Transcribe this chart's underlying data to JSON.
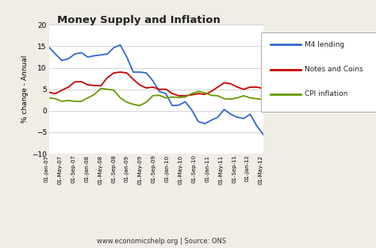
{
  "title": "Money Supply and Inflation",
  "ylabel": "% change - Annual",
  "source_text": "www.economicshelp.org | Source: ONS",
  "ylim": [
    -10,
    20
  ],
  "yticks": [
    -10,
    -5,
    0,
    5,
    10,
    15,
    20
  ],
  "background_color": "#f0ede6",
  "plot_bg_color": "#ffffff",
  "legend_entries": [
    "M4 lending",
    "Notes and Coins",
    "CPI inflation"
  ],
  "line_colors": [
    "#3366cc",
    "#cc0000",
    "#669900"
  ],
  "x_labels": [
    "01-Jan-07",
    "01-May-07",
    "01-Sep-07",
    "01-Jan-08",
    "01-May-08",
    "01-Sep-08",
    "01-Jan-09",
    "01-May-09",
    "01-Sep-09",
    "01-Jan-10",
    "01-May-10",
    "01-Sep-10",
    "01-Jan-11",
    "01-May-11",
    "01-Sep-11",
    "01-Jan-12",
    "01-May-12"
  ],
  "m4_lending": [
    14.8,
    13.2,
    11.7,
    12.1,
    13.2,
    13.5,
    12.5,
    12.8,
    13.0,
    13.2,
    14.7,
    15.3,
    12.5,
    9.0,
    9.0,
    8.8,
    7.0,
    4.5,
    4.0,
    1.2,
    1.3,
    2.1,
    0.2,
    -2.5,
    -3.0,
    -2.2,
    -1.5,
    0.3,
    -0.8,
    -1.5,
    -1.8,
    -0.8,
    -3.5,
    -5.5
  ],
  "notes_and_coins": [
    4.3,
    4.0,
    4.8,
    5.5,
    6.7,
    6.8,
    6.0,
    5.9,
    5.8,
    7.7,
    8.8,
    9.0,
    8.8,
    7.3,
    6.0,
    5.3,
    5.5,
    5.0,
    5.0,
    4.0,
    3.5,
    3.5,
    3.7,
    4.0,
    3.8,
    4.5,
    5.5,
    6.5,
    6.3,
    5.5,
    5.0,
    5.5,
    5.5,
    5.2
  ],
  "cpi_inflation": [
    3.0,
    2.8,
    2.2,
    2.4,
    2.2,
    2.2,
    3.0,
    3.8,
    5.2,
    5.0,
    4.8,
    3.0,
    2.0,
    1.5,
    1.2,
    2.0,
    3.5,
    3.6,
    3.0,
    3.2,
    3.1,
    3.2,
    4.0,
    4.5,
    4.2,
    3.6,
    3.5,
    2.8,
    2.7,
    3.0,
    3.5,
    3.0,
    2.8,
    2.6
  ]
}
